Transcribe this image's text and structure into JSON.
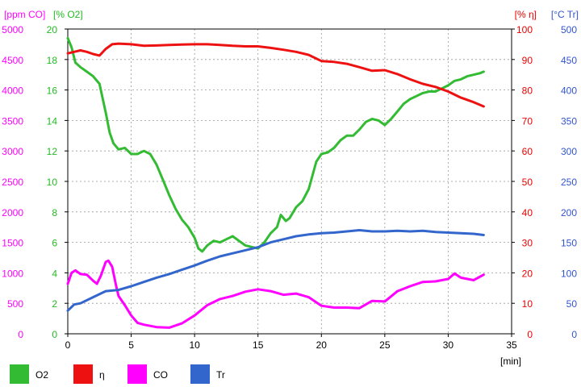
{
  "chart_data": {
    "type": "line",
    "xlabel": "[min]",
    "xlim": [
      0,
      35
    ],
    "x_ticks": [
      "0",
      "5",
      "10",
      "15",
      "20",
      "25",
      "30",
      "35"
    ],
    "axes": [
      {
        "id": "co",
        "label": "[ppm CO]",
        "range": [
          0,
          5000
        ],
        "side": "left",
        "color": "#ff00ff",
        "ticks": [
          "0",
          "500",
          "1000",
          "1500",
          "2000",
          "2500",
          "3000",
          "3500",
          "4000",
          "4500",
          "5000"
        ]
      },
      {
        "id": "o2",
        "label": "[% O2]",
        "range": [
          0,
          20
        ],
        "side": "left",
        "color": "#22bb22",
        "ticks": [
          "0",
          "2",
          "4",
          "6",
          "8",
          "10",
          "12",
          "14",
          "16",
          "18",
          "20"
        ]
      },
      {
        "id": "eta",
        "label": "[% η]",
        "range": [
          0,
          100
        ],
        "side": "right",
        "color": "#ee0000",
        "ticks": [
          "0",
          "10",
          "20",
          "30",
          "40",
          "50",
          "60",
          "70",
          "80",
          "90",
          "100"
        ]
      },
      {
        "id": "tr",
        "label": "[°C Tr]",
        "range": [
          0,
          500
        ],
        "side": "right",
        "color": "#3355cc",
        "ticks": [
          "0",
          "50",
          "100",
          "150",
          "200",
          "250",
          "300",
          "350",
          "400",
          "450",
          "500"
        ]
      }
    ],
    "series": [
      {
        "name": "O2",
        "axis": "o2",
        "color": "#33bb33",
        "points": [
          [
            0,
            19.4
          ],
          [
            0.3,
            18.8
          ],
          [
            0.6,
            17.8
          ],
          [
            1,
            17.5
          ],
          [
            1.5,
            17.2
          ],
          [
            2,
            16.9
          ],
          [
            2.5,
            16.4
          ],
          [
            3,
            14.5
          ],
          [
            3.3,
            13.2
          ],
          [
            3.6,
            12.5
          ],
          [
            4,
            12.1
          ],
          [
            4.5,
            12.2
          ],
          [
            5,
            11.8
          ],
          [
            5.5,
            11.8
          ],
          [
            6,
            12.0
          ],
          [
            6.5,
            11.8
          ],
          [
            7,
            11.1
          ],
          [
            7.5,
            10.1
          ],
          [
            8,
            9.1
          ],
          [
            8.5,
            8.2
          ],
          [
            9,
            7.5
          ],
          [
            9.5,
            7.0
          ],
          [
            10,
            6.3
          ],
          [
            10.3,
            5.6
          ],
          [
            10.6,
            5.4
          ],
          [
            11,
            5.8
          ],
          [
            11.5,
            6.1
          ],
          [
            12,
            6.0
          ],
          [
            12.5,
            6.2
          ],
          [
            13,
            6.4
          ],
          [
            13.5,
            6.1
          ],
          [
            14,
            5.8
          ],
          [
            14.5,
            5.7
          ],
          [
            15,
            5.6
          ],
          [
            15.5,
            6.0
          ],
          [
            16,
            6.6
          ],
          [
            16.5,
            7.0
          ],
          [
            16.8,
            7.8
          ],
          [
            17.2,
            7.4
          ],
          [
            17.5,
            7.6
          ],
          [
            18,
            8.3
          ],
          [
            18.5,
            8.7
          ],
          [
            19,
            9.5
          ],
          [
            19.3,
            10.4
          ],
          [
            19.6,
            11.3
          ],
          [
            20,
            11.8
          ],
          [
            20.5,
            11.9
          ],
          [
            21,
            12.2
          ],
          [
            21.5,
            12.7
          ],
          [
            22,
            13.0
          ],
          [
            22.5,
            13.0
          ],
          [
            23,
            13.4
          ],
          [
            23.5,
            13.9
          ],
          [
            24,
            14.1
          ],
          [
            24.5,
            14.0
          ],
          [
            25,
            13.7
          ],
          [
            25.5,
            14.1
          ],
          [
            26,
            14.6
          ],
          [
            26.5,
            15.1
          ],
          [
            27,
            15.4
          ],
          [
            27.5,
            15.6
          ],
          [
            28,
            15.8
          ],
          [
            28.5,
            15.9
          ],
          [
            29,
            15.9
          ],
          [
            29.5,
            16.1
          ],
          [
            30,
            16.3
          ],
          [
            30.5,
            16.6
          ],
          [
            31,
            16.7
          ],
          [
            31.5,
            16.9
          ],
          [
            32,
            17.0
          ],
          [
            32.5,
            17.1
          ],
          [
            32.8,
            17.2
          ]
        ]
      },
      {
        "name": "η",
        "axis": "eta",
        "color": "#ee1111",
        "points": [
          [
            0,
            92
          ],
          [
            0.5,
            92.5
          ],
          [
            1,
            93
          ],
          [
            1.5,
            92.5
          ],
          [
            2,
            91.8
          ],
          [
            2.5,
            91.3
          ],
          [
            3,
            93.5
          ],
          [
            3.5,
            95
          ],
          [
            4,
            95.2
          ],
          [
            5,
            95
          ],
          [
            6,
            94.5
          ],
          [
            7,
            94.6
          ],
          [
            8,
            94.8
          ],
          [
            9,
            94.9
          ],
          [
            10,
            95
          ],
          [
            11,
            95
          ],
          [
            12,
            94.8
          ],
          [
            13,
            94.5
          ],
          [
            14,
            94.3
          ],
          [
            15,
            94.3
          ],
          [
            16,
            93.8
          ],
          [
            17,
            93.2
          ],
          [
            18,
            92.5
          ],
          [
            19,
            91.5
          ],
          [
            20,
            89.5
          ],
          [
            21,
            89.2
          ],
          [
            22,
            88.6
          ],
          [
            23,
            87.5
          ],
          [
            24,
            86.3
          ],
          [
            25,
            86.5
          ],
          [
            26,
            85.2
          ],
          [
            27,
            83.5
          ],
          [
            28,
            82
          ],
          [
            29,
            81
          ],
          [
            30,
            79.5
          ],
          [
            31,
            77.5
          ],
          [
            32,
            76
          ],
          [
            32.8,
            74.6
          ]
        ]
      },
      {
        "name": "CO",
        "axis": "co",
        "color": "#ff00ff",
        "points": [
          [
            0,
            820
          ],
          [
            0.3,
            1000
          ],
          [
            0.6,
            1040
          ],
          [
            1,
            980
          ],
          [
            1.5,
            970
          ],
          [
            2,
            870
          ],
          [
            2.3,
            820
          ],
          [
            2.6,
            950
          ],
          [
            3,
            1180
          ],
          [
            3.2,
            1200
          ],
          [
            3.5,
            1100
          ],
          [
            3.8,
            800
          ],
          [
            4,
            620
          ],
          [
            4.5,
            470
          ],
          [
            5,
            300
          ],
          [
            5.5,
            180
          ],
          [
            6,
            150
          ],
          [
            7,
            110
          ],
          [
            8,
            100
          ],
          [
            9,
            170
          ],
          [
            10,
            300
          ],
          [
            11,
            470
          ],
          [
            12,
            570
          ],
          [
            13,
            620
          ],
          [
            14,
            690
          ],
          [
            15,
            730
          ],
          [
            16,
            700
          ],
          [
            17,
            640
          ],
          [
            17.5,
            650
          ],
          [
            18,
            660
          ],
          [
            19,
            600
          ],
          [
            20,
            460
          ],
          [
            21,
            430
          ],
          [
            22,
            430
          ],
          [
            23,
            420
          ],
          [
            24,
            540
          ],
          [
            25,
            530
          ],
          [
            26,
            700
          ],
          [
            27,
            780
          ],
          [
            28,
            850
          ],
          [
            29,
            860
          ],
          [
            30,
            900
          ],
          [
            30.5,
            990
          ],
          [
            31,
            920
          ],
          [
            32,
            880
          ],
          [
            32.8,
            970
          ]
        ]
      },
      {
        "name": "Tr",
        "axis": "tr",
        "color": "#3366cc",
        "points": [
          [
            0,
            38
          ],
          [
            0.5,
            48
          ],
          [
            1,
            50
          ],
          [
            2,
            60
          ],
          [
            3,
            70
          ],
          [
            4,
            72
          ],
          [
            5,
            78
          ],
          [
            6,
            85
          ],
          [
            7,
            92
          ],
          [
            8,
            98
          ],
          [
            9,
            105
          ],
          [
            10,
            112
          ],
          [
            11,
            120
          ],
          [
            12,
            127
          ],
          [
            13,
            132
          ],
          [
            14,
            137
          ],
          [
            15,
            142
          ],
          [
            16,
            150
          ],
          [
            17,
            155
          ],
          [
            18,
            160
          ],
          [
            19,
            163
          ],
          [
            20,
            165
          ],
          [
            21,
            166
          ],
          [
            22,
            168
          ],
          [
            23,
            170
          ],
          [
            24,
            168
          ],
          [
            25,
            168
          ],
          [
            26,
            169
          ],
          [
            27,
            168
          ],
          [
            28,
            169
          ],
          [
            29,
            167
          ],
          [
            30,
            166
          ],
          [
            31,
            165
          ],
          [
            32,
            164
          ],
          [
            32.8,
            162
          ]
        ]
      }
    ],
    "legend": {
      "placement": "bottom-left",
      "items": [
        {
          "label": "O2",
          "color": "#33bb33"
        },
        {
          "label": "η",
          "color": "#ee1111"
        },
        {
          "label": "CO",
          "color": "#ff00ff"
        },
        {
          "label": "Tr",
          "color": "#3366cc"
        }
      ]
    },
    "grid": true
  }
}
